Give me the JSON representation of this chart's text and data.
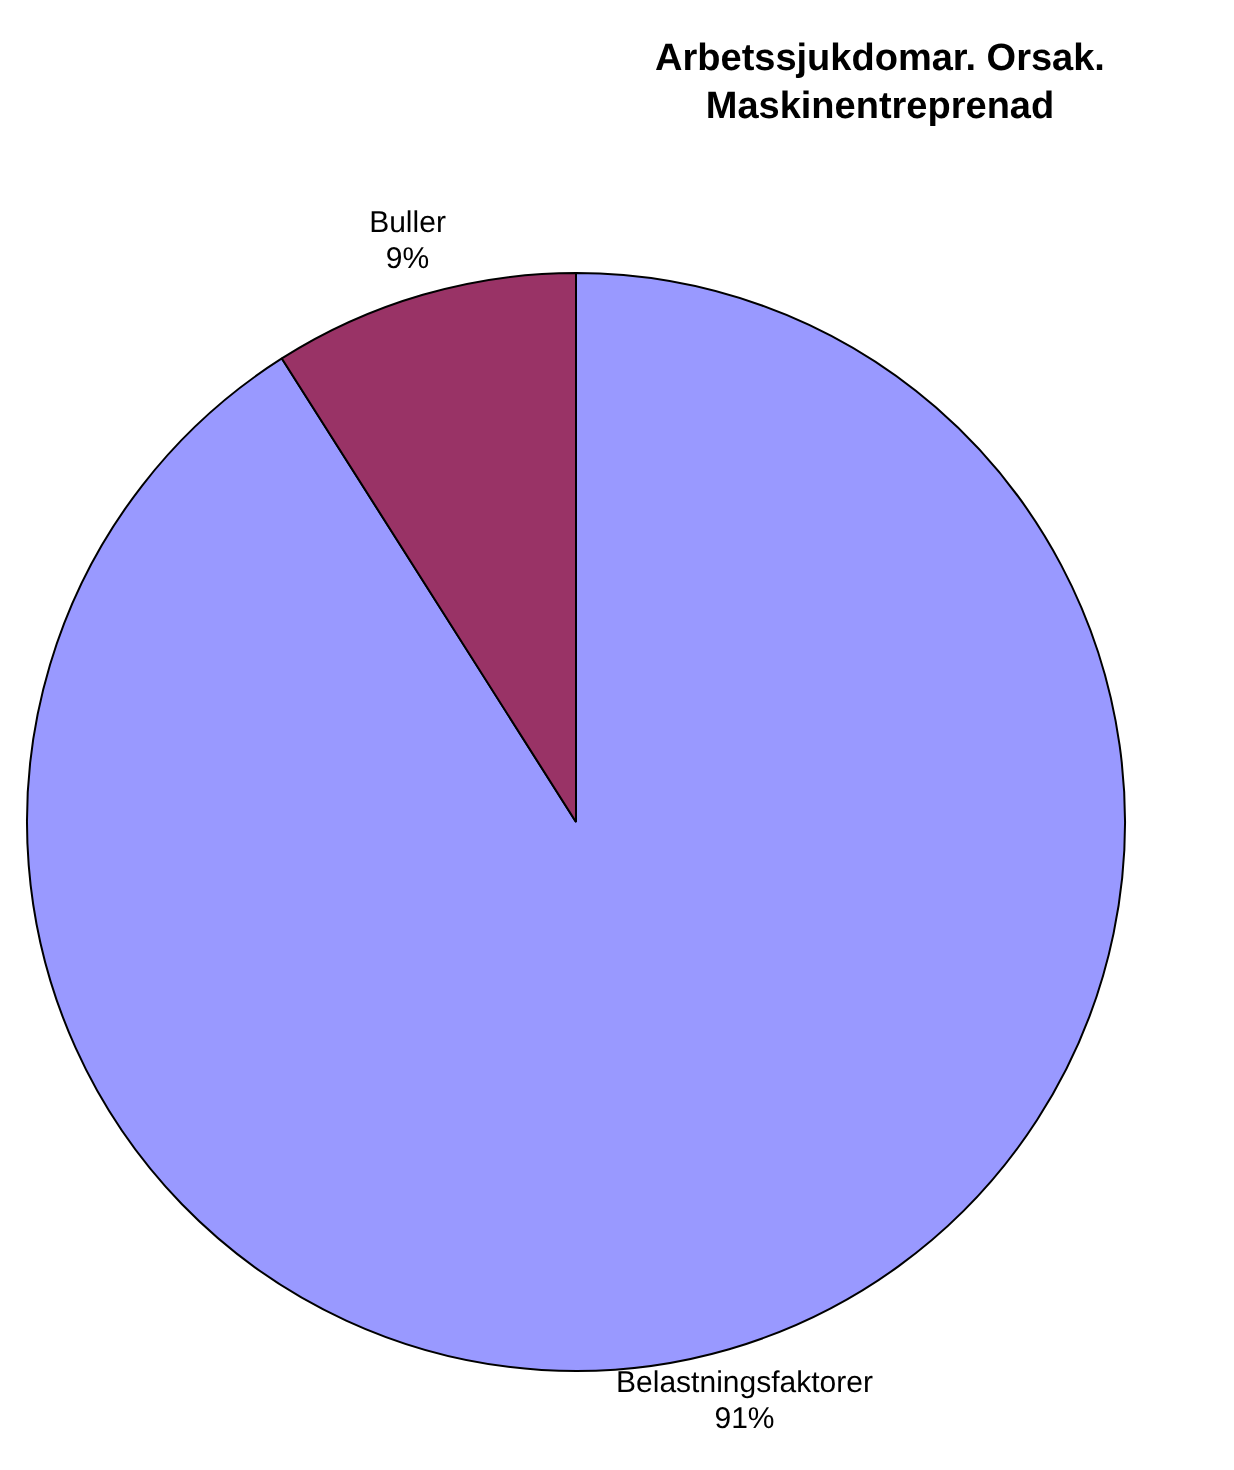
{
  "chart_data": {
    "type": "pie",
    "title": "Arbetssjukdomar. Orsak. Maskinentreprenad",
    "categories": [
      "Belastningsfaktorer",
      "Buller"
    ],
    "values": [
      91,
      9
    ],
    "colors": [
      "#9999ff",
      "#993366"
    ],
    "value_labels": [
      "91%",
      "9%"
    ],
    "legend": false
  }
}
